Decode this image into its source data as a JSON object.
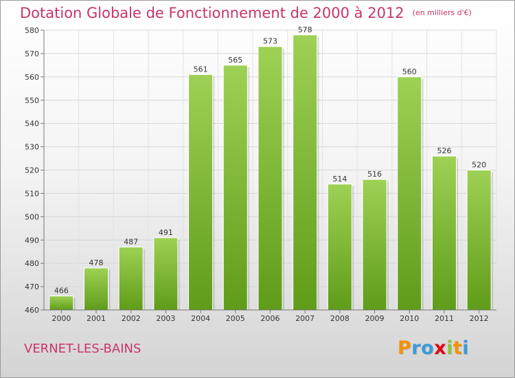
{
  "header": {
    "title": "Dotation Globale de Fonctionnement de 2000 à 2012",
    "subtitle": "(en milliers d'€)"
  },
  "commune": "VERNET-LES-BAINS",
  "brand": {
    "letters": [
      "P",
      "r",
      "o",
      "x",
      "i",
      "t",
      "i"
    ],
    "colors": [
      "#f39200",
      "#3a9bd9",
      "#3a9bd9",
      "#e30613",
      "#8cc63f",
      "#f39200",
      "#3a9bd9"
    ]
  },
  "colors": {
    "bar_light": "#9ed155",
    "bar_dark": "#5f9c19",
    "title": "#c8346c"
  },
  "chart_data": {
    "type": "bar",
    "title": "Dotation Globale de Fonctionnement de 2000 à 2012",
    "subtitle": "(en milliers d'€)",
    "xlabel": "",
    "ylabel": "",
    "categories": [
      "2000",
      "2001",
      "2002",
      "2003",
      "2004",
      "2005",
      "2006",
      "2007",
      "2008",
      "2009",
      "2010",
      "2011",
      "2012"
    ],
    "values": [
      466,
      478,
      487,
      491,
      561,
      565,
      573,
      578,
      514,
      516,
      560,
      526,
      520
    ],
    "ylim": [
      460,
      580
    ],
    "yticks": [
      460,
      470,
      480,
      490,
      500,
      510,
      520,
      530,
      540,
      550,
      560,
      570,
      580
    ],
    "grid": true
  }
}
